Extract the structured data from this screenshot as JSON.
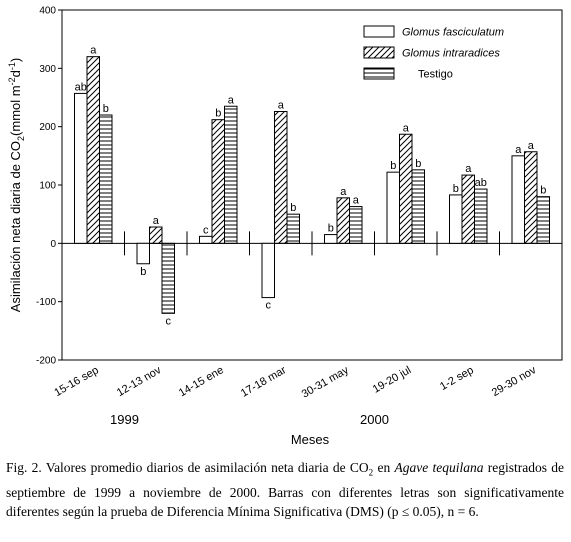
{
  "chart_data": {
    "type": "bar",
    "ylabel": "Asimilación neta diaria de CO2(mmol m-2d-1)",
    "xlabel": "Meses",
    "ylim": [
      -200,
      400
    ],
    "yticks": [
      "-200",
      "-100",
      "0",
      "100",
      "200",
      "300",
      "400"
    ],
    "categories": [
      "15-16 sep",
      "12-13 nov",
      "14-15 ene",
      "17-18 mar",
      "30-31 may",
      "19-20 jul",
      "1-2 sep",
      "29-30 nov"
    ],
    "years": [
      {
        "label": "1999"
      },
      {
        "label": "2000"
      }
    ],
    "legend_position": "top-right",
    "series": [
      {
        "name": "Glomus fasciculatum",
        "pattern": "empty",
        "values": [
          257,
          -35,
          12,
          -93,
          15,
          122,
          83,
          150
        ],
        "letters": [
          "ab",
          "b",
          "c",
          "c",
          "b",
          "b",
          "b",
          "a"
        ]
      },
      {
        "name": "Glomus intraradices",
        "pattern": "diagonal",
        "values": [
          320,
          28,
          212,
          226,
          78,
          187,
          117,
          157
        ],
        "letters": [
          "a",
          "a",
          "b",
          "a",
          "a",
          "a",
          "a",
          "a"
        ]
      },
      {
        "name": "Testigo",
        "pattern": "horizontal",
        "values": [
          220,
          -120,
          235,
          50,
          63,
          126,
          93,
          80
        ],
        "letters": [
          "b",
          "c",
          "a",
          "b",
          "a",
          "b",
          "ab",
          "b"
        ]
      }
    ]
  },
  "caption": {
    "prefix": "Fig. 2. Valores promedio diarios de asimilación neta diaria de CO",
    "sub": "2",
    "middle": " en ",
    "species": "Agave tequilana",
    "rest": " registrados de septiembre de 1999 a noviembre de 2000. Barras con diferentes letras son significativamente diferentes según la prueba de Diferencia Mínima Significativa (DMS) (p ≤ 0.05), n = 6."
  }
}
